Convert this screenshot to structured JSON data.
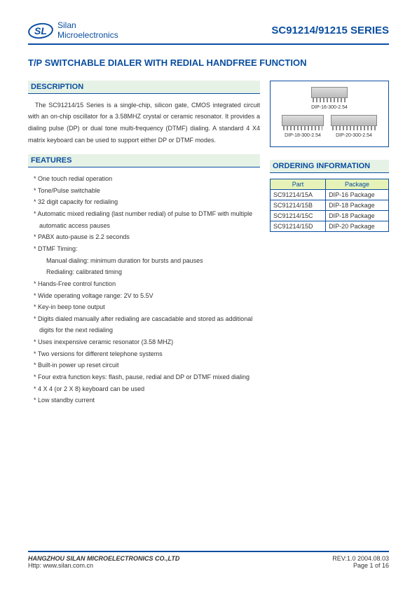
{
  "header": {
    "logo_text_line1": "Silan",
    "logo_text_line2": "Microelectronics",
    "logo_initials": "SL",
    "series_title": "SC91214/91215 SERIES",
    "colors": {
      "brand": "#0a4ea0",
      "section_bg": "#e6f2e6",
      "table_head_bg": "#e6f2b8"
    }
  },
  "title": "T/P SWITCHABLE DIALER WITH REDIAL HANDFREE FUNCTION",
  "sections": {
    "description_head": "DESCRIPTION",
    "features_head": "FEATURES",
    "ordering_head": "ORDERING INFORMATION"
  },
  "description": "The SC91214/15 Series is a single-chip, silicon gate, CMOS integrated circuit with an on-chip oscillator for a 3.58MHZ crystal or ceramic resonator. It provides a dialing pulse (DP) or dual tone multi-frequency (DTMF) dialing. A standard 4 X4 matrix keyboard can be used to support either DP or DTMF modes.",
  "features": [
    "One touch redial operation",
    "Tone/Pulse switchable",
    "32 digit capacity for redialing",
    "Automatic mixed redialing (last number redial) of pulse to DTMF with multiple automatic access pauses",
    "PABX auto-pause is 2.2 seconds",
    "DTMF Timing:",
    "Hands-Free control function",
    "Wide operating voltage range: 2V to 5.5V",
    "Key-in beep tone output",
    "Digits dialed manually after redialing are cascadable and stored as additional digits for the next redialing",
    "Uses inexpensive ceramic resonator (3.58 MHZ)",
    "Two versions for different telephone systems",
    "Built-in power up reset circuit",
    "Four extra function keys: flash, pause, redial and DP or DTMF mixed dialing",
    "4 X 4 (or 2 X 8) keyboard can be used",
    "Low standby current"
  ],
  "dtmf_sub": [
    "Manual dialing: minimum duration for bursts and pauses",
    "Redialing: calibrated timing"
  ],
  "packages": {
    "chip1": "DIP-16-300-2.54",
    "chip2": "DIP-18-300-2.54",
    "chip3": "DIP-20-300-2.54"
  },
  "ordering": {
    "columns": [
      "Part",
      "Package"
    ],
    "rows": [
      [
        "SC91214/15A",
        "DIP-16 Package"
      ],
      [
        "SC91214/15B",
        "DIP-18 Package"
      ],
      [
        "SC91214/15C",
        "DIP-18 Package"
      ],
      [
        "SC91214/15D",
        "DIP-20 Package"
      ]
    ]
  },
  "footer": {
    "company": "HANGZHOU SILAN MICROELECTRONICS CO.,LTD",
    "url": "Http: www.silan.com.cn",
    "rev": "REV:1.0    2004.08.03",
    "page": "Page 1 of 16"
  }
}
